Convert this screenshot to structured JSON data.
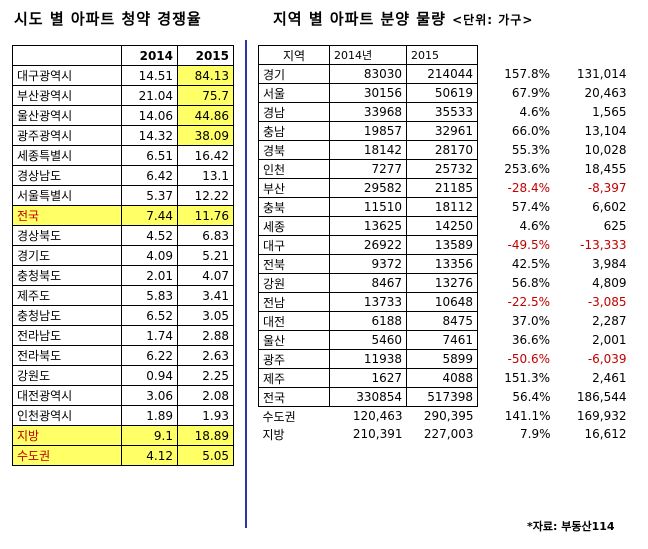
{
  "left": {
    "title": "시도 별 아파트 청약 경쟁율",
    "headers": [
      "",
      "2014",
      "2015"
    ],
    "rows": [
      {
        "name": "대구광역시",
        "y2014": "14.51",
        "y2015": "84.13",
        "hl2015": true
      },
      {
        "name": "부산광역시",
        "y2014": "21.04",
        "y2015": "75.7",
        "hl2015": true
      },
      {
        "name": "울산광역시",
        "y2014": "14.06",
        "y2015": "44.86",
        "hl2015": true
      },
      {
        "name": "광주광역시",
        "y2014": "14.32",
        "y2015": "38.09",
        "hl2015": true
      },
      {
        "name": "세종특별시",
        "y2014": "6.51",
        "y2015": "16.42"
      },
      {
        "name": "경상남도",
        "y2014": "6.42",
        "y2015": "13.1"
      },
      {
        "name": "서울특별시",
        "y2014": "5.37",
        "y2015": "12.22"
      },
      {
        "name": "전국",
        "y2014": "7.44",
        "y2015": "11.76",
        "highlight": true
      },
      {
        "name": "경상북도",
        "y2014": "4.52",
        "y2015": "6.83"
      },
      {
        "name": "경기도",
        "y2014": "4.09",
        "y2015": "5.21"
      },
      {
        "name": "충청북도",
        "y2014": "2.01",
        "y2015": "4.07"
      },
      {
        "name": "제주도",
        "y2014": "5.83",
        "y2015": "3.41"
      },
      {
        "name": "충청남도",
        "y2014": "6.52",
        "y2015": "3.05"
      },
      {
        "name": "전라남도",
        "y2014": "1.74",
        "y2015": "2.88"
      },
      {
        "name": "전라북도",
        "y2014": "6.22",
        "y2015": "2.63"
      },
      {
        "name": "강원도",
        "y2014": "0.94",
        "y2015": "2.25"
      },
      {
        "name": "대전광역시",
        "y2014": "3.06",
        "y2015": "2.08"
      },
      {
        "name": "인천광역시",
        "y2014": "1.89",
        "y2015": "1.93"
      },
      {
        "name": "지방",
        "y2014": "9.1",
        "y2015": "18.89",
        "highlight": true
      },
      {
        "name": "수도권",
        "y2014": "4.12",
        "y2015": "5.05",
        "highlight": true
      }
    ]
  },
  "right": {
    "title": "지역 별 아파트  분양 물량",
    "unit": "<단위: 가구>",
    "headers": [
      "지역",
      "2014년",
      "2015",
      "",
      ""
    ],
    "rows": [
      {
        "region": "경기",
        "y2014": "83030",
        "y2015": "214044",
        "pct": "157.8%",
        "diff": "131,014"
      },
      {
        "region": "서울",
        "y2014": "30156",
        "y2015": "50619",
        "pct": "67.9%",
        "diff": "20,463"
      },
      {
        "region": "경남",
        "y2014": "33968",
        "y2015": "35533",
        "pct": "4.6%",
        "diff": "1,565"
      },
      {
        "region": "충남",
        "y2014": "19857",
        "y2015": "32961",
        "pct": "66.0%",
        "diff": "13,104"
      },
      {
        "region": "경북",
        "y2014": "18142",
        "y2015": "28170",
        "pct": "55.3%",
        "diff": "10,028"
      },
      {
        "region": "인천",
        "y2014": "7277",
        "y2015": "25732",
        "pct": "253.6%",
        "diff": "18,455"
      },
      {
        "region": "부산",
        "y2014": "29582",
        "y2015": "21185",
        "pct": "-28.4%",
        "diff": "-8,397",
        "negative": true
      },
      {
        "region": "충북",
        "y2014": "11510",
        "y2015": "18112",
        "pct": "57.4%",
        "diff": "6,602"
      },
      {
        "region": "세종",
        "y2014": "13625",
        "y2015": "14250",
        "pct": "4.6%",
        "diff": "625"
      },
      {
        "region": "대구",
        "y2014": "26922",
        "y2015": "13589",
        "pct": "-49.5%",
        "diff": "-13,333",
        "negative": true
      },
      {
        "region": "전북",
        "y2014": "9372",
        "y2015": "13356",
        "pct": "42.5%",
        "diff": "3,984"
      },
      {
        "region": "강원",
        "y2014": "8467",
        "y2015": "13276",
        "pct": "56.8%",
        "diff": "4,809"
      },
      {
        "region": "전남",
        "y2014": "13733",
        "y2015": "10648",
        "pct": "-22.5%",
        "diff": "-3,085",
        "negative": true
      },
      {
        "region": "대전",
        "y2014": "6188",
        "y2015": "8475",
        "pct": "37.0%",
        "diff": "2,287"
      },
      {
        "region": "울산",
        "y2014": "5460",
        "y2015": "7461",
        "pct": "36.6%",
        "diff": "2,001"
      },
      {
        "region": "광주",
        "y2014": "11938",
        "y2015": "5899",
        "pct": "-50.6%",
        "diff": "-6,039",
        "negative": true
      },
      {
        "region": "제주",
        "y2014": "1627",
        "y2015": "4088",
        "pct": "151.3%",
        "diff": "2,461"
      },
      {
        "region": "전국",
        "y2014": "330854",
        "y2015": "517398",
        "pct": "56.4%",
        "diff": "186,544"
      },
      {
        "region": "수도권",
        "y2014": "120,463",
        "y2015": "290,395",
        "pct": "141.1%",
        "diff": "169,932",
        "noBorder": true
      },
      {
        "region": "지방",
        "y2014": "210,391",
        "y2015": "227,003",
        "pct": "7.9%",
        "diff": "16,612",
        "noBorder": true
      }
    ]
  },
  "source": "*자료: 부동산114",
  "colors": {
    "highlight": "#ffff66",
    "negative": "#c00000",
    "divider": "#2a36a5"
  }
}
